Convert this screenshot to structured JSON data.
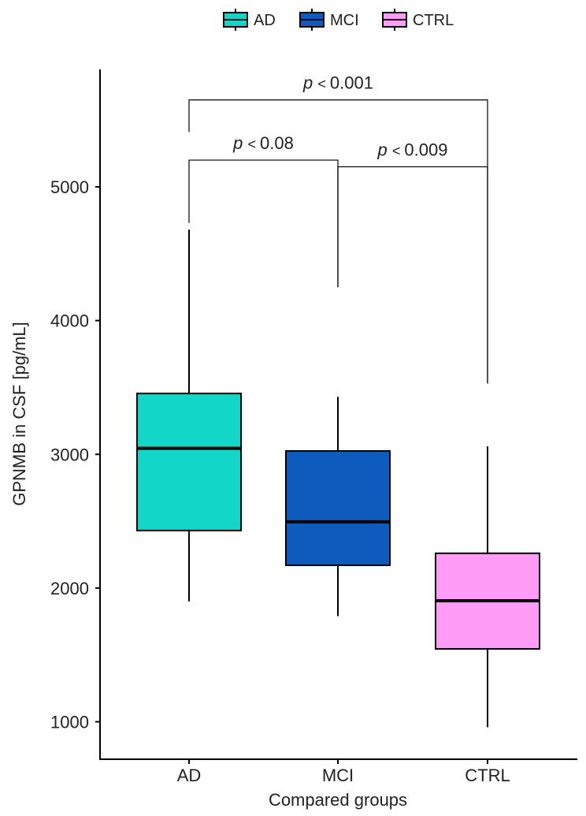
{
  "chart_data": {
    "type": "box",
    "xlabel": "Compared groups",
    "ylabel": "GPNMB in CSF [pg/mL]",
    "ylim": [
      750,
      5900
    ],
    "yticks": [
      1000,
      2000,
      3000,
      4000,
      5000
    ],
    "categories": [
      "AD",
      "MCI",
      "CTRL"
    ],
    "grid": false,
    "legend_position": "top",
    "legend": [
      "AD",
      "MCI",
      "CTRL"
    ],
    "boxes": [
      {
        "name": "AD",
        "color": "#12d6c8",
        "min": 1900,
        "q1": 2430,
        "median": 3045,
        "q3": 3455,
        "max": 4680
      },
      {
        "name": "MCI",
        "color": "#0c5bbd",
        "min": 1790,
        "q1": 2170,
        "median": 2495,
        "q3": 3025,
        "max": 3430
      },
      {
        "name": "CTRL",
        "color": "#ff9cf7",
        "min": 960,
        "q1": 1545,
        "median": 1905,
        "q3": 2260,
        "max": 3060
      }
    ],
    "comparisons": [
      {
        "groups": [
          "AD",
          "MCI"
        ],
        "p": "p",
        "op": "<",
        "value": "0.08",
        "bar_y": 5200,
        "left_tip_y": 4730,
        "right_tip_y": 4250
      },
      {
        "groups": [
          "MCI",
          "CTRL"
        ],
        "p": "p",
        "op": "<",
        "value": "0.009",
        "bar_y": 5150,
        "left_tip_y": 4250,
        "right_tip_y": 3530
      },
      {
        "groups": [
          "AD",
          "CTRL"
        ],
        "p": "p",
        "op": "<",
        "value": "0.001",
        "bar_y": 5650,
        "left_tip_y": 5410,
        "right_tip_y": 3530
      }
    ]
  }
}
